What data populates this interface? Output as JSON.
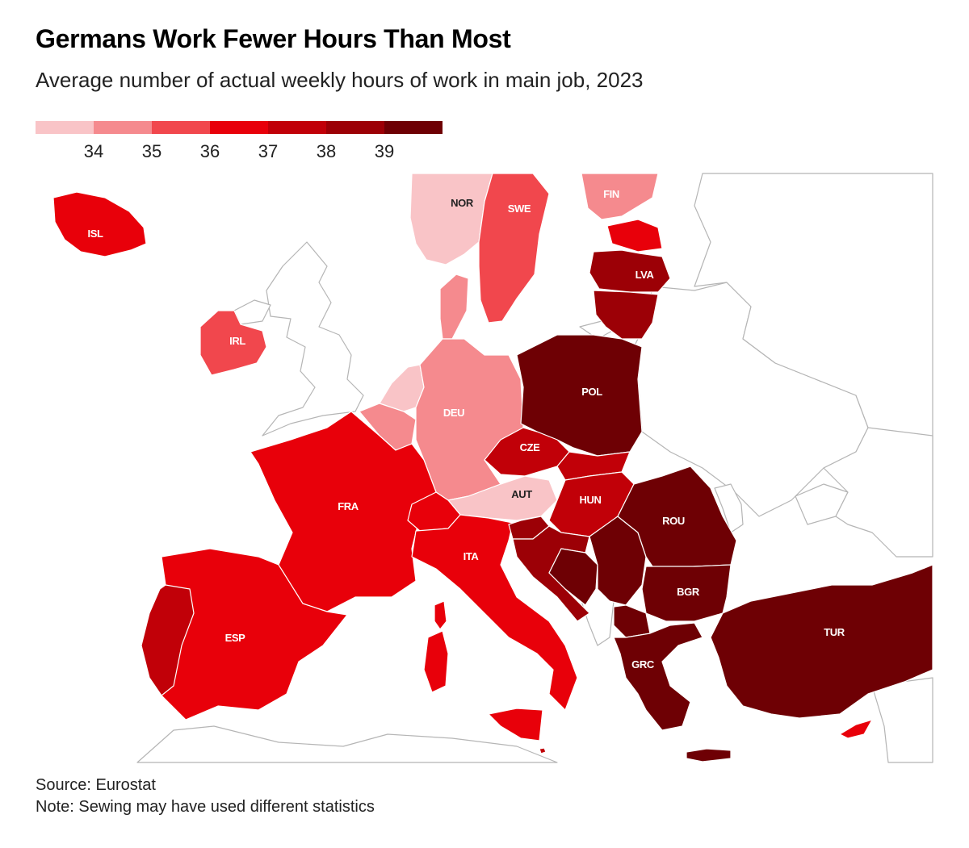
{
  "header": {
    "title": "Germans Work Fewer Hours Than Most",
    "subtitle": "Average number of actual weekly hours of work in main job, 2023"
  },
  "legend": {
    "colors": [
      "#f9c4c7",
      "#f58a8e",
      "#f1474d",
      "#e8000a",
      "#c10008",
      "#9c0006",
      "#6e0004"
    ],
    "ticks": [
      "34",
      "35",
      "36",
      "37",
      "38",
      "39"
    ]
  },
  "map": {
    "colors": {
      "sea": "#ffffff",
      "non_data_land": "#ffffff",
      "border": "#b5b5b5",
      "country_border": "#ffffff",
      "label_light": "#ffffff",
      "label_dark": "#222222"
    },
    "countries": [
      {
        "code": "ISL",
        "label": "ISL",
        "bin": 3
      },
      {
        "code": "NOR",
        "label": "NOR",
        "bin": 0
      },
      {
        "code": "SWE",
        "label": "SWE",
        "bin": 2
      },
      {
        "code": "FIN",
        "label": "FIN",
        "bin": 1
      },
      {
        "code": "EST",
        "label": "",
        "bin": 3
      },
      {
        "code": "LVA",
        "label": "LVA",
        "bin": 5
      },
      {
        "code": "LTU",
        "label": "",
        "bin": 5
      },
      {
        "code": "IRL",
        "label": "IRL",
        "bin": 2
      },
      {
        "code": "DNK",
        "label": "",
        "bin": 1
      },
      {
        "code": "NLD",
        "label": "",
        "bin": 0
      },
      {
        "code": "BEL",
        "label": "",
        "bin": 1
      },
      {
        "code": "DEU",
        "label": "DEU",
        "bin": 1
      },
      {
        "code": "POL",
        "label": "POL",
        "bin": 6
      },
      {
        "code": "CZE",
        "label": "CZE",
        "bin": 4
      },
      {
        "code": "SVK",
        "label": "",
        "bin": 4
      },
      {
        "code": "AUT",
        "label": "AUT",
        "bin": 0
      },
      {
        "code": "HUN",
        "label": "HUN",
        "bin": 4
      },
      {
        "code": "FRA",
        "label": "FRA",
        "bin": 3
      },
      {
        "code": "CHE",
        "label": "",
        "bin": 3
      },
      {
        "code": "ITA",
        "label": "ITA",
        "bin": 3
      },
      {
        "code": "ESP",
        "label": "ESP",
        "bin": 3
      },
      {
        "code": "PRT",
        "label": "",
        "bin": 4
      },
      {
        "code": "SVN",
        "label": "",
        "bin": 5
      },
      {
        "code": "HRV",
        "label": "",
        "bin": 5
      },
      {
        "code": "BIH",
        "label": "",
        "bin": 6
      },
      {
        "code": "SRB",
        "label": "",
        "bin": 6
      },
      {
        "code": "ROU",
        "label": "ROU",
        "bin": 6
      },
      {
        "code": "BGR",
        "label": "BGR",
        "bin": 6
      },
      {
        "code": "MKD",
        "label": "",
        "bin": 6
      },
      {
        "code": "GRC",
        "label": "GRC",
        "bin": 6
      },
      {
        "code": "TUR",
        "label": "TUR",
        "bin": 6
      },
      {
        "code": "CYP",
        "label": "",
        "bin": 3
      },
      {
        "code": "MLT",
        "label": "",
        "bin": 4
      }
    ]
  },
  "footer": {
    "source": "Source: Eurostat",
    "note": "Note: Sewing may have used different statistics"
  }
}
